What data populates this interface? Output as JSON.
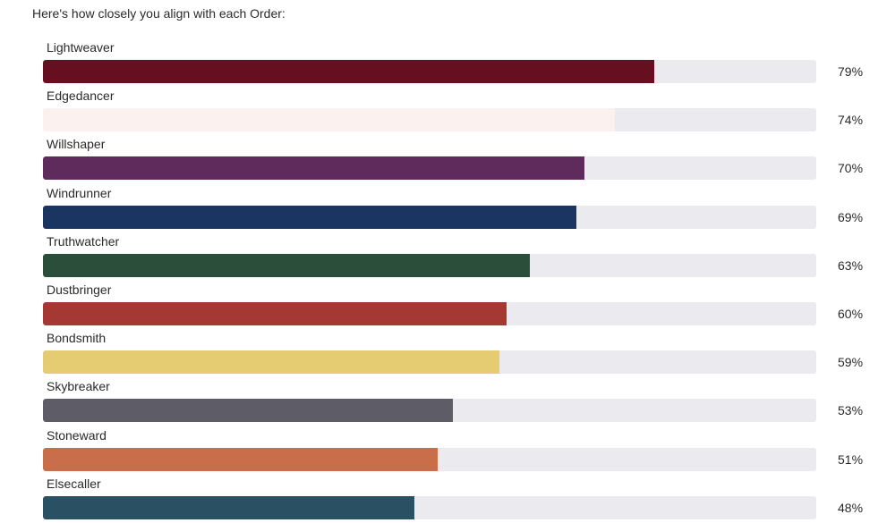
{
  "intro_text": "Here's how closely you align with each Order:",
  "chart_data": {
    "type": "bar",
    "orientation": "horizontal",
    "categories": [
      "Lightweaver",
      "Edgedancer",
      "Willshaper",
      "Windrunner",
      "Truthwatcher",
      "Dustbringer",
      "Bondsmith",
      "Skybreaker",
      "Stoneward",
      "Elsecaller"
    ],
    "values": [
      79,
      74,
      70,
      69,
      63,
      60,
      59,
      53,
      51,
      48
    ],
    "value_labels": [
      "79%",
      "74%",
      "70%",
      "69%",
      "63%",
      "60%",
      "59%",
      "53%",
      "51%",
      "48%"
    ],
    "colors": [
      "#650f20",
      "#fbf2ef",
      "#5e2b5c",
      "#1b3563",
      "#2b4e3b",
      "#a63834",
      "#e5cb72",
      "#5e5c67",
      "#c86e4a",
      "#2a5063"
    ],
    "track_color": "#ebebef",
    "xlim": [
      0,
      100
    ],
    "grid": false,
    "legend": "none"
  }
}
